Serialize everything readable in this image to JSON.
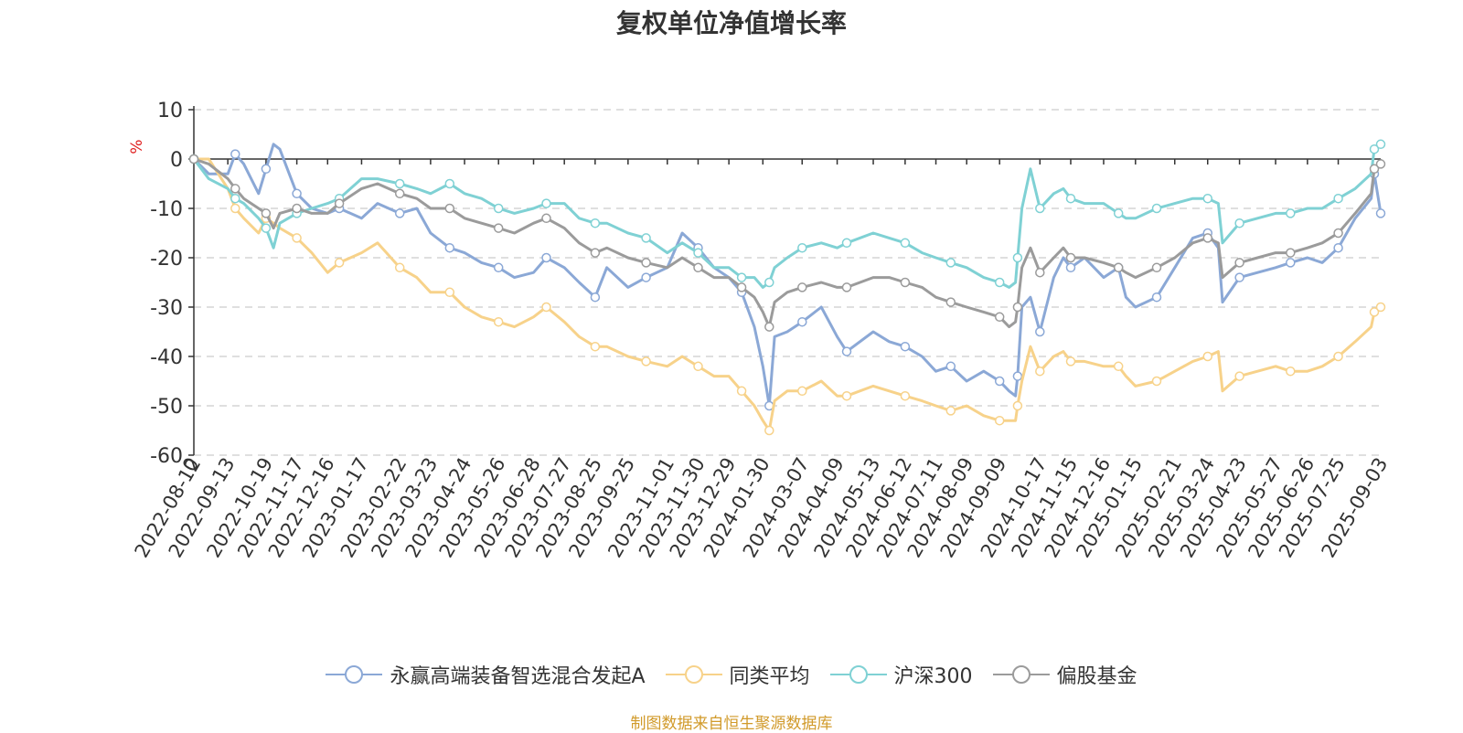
{
  "chart_data": {
    "type": "line",
    "title": "复权单位净值增长率",
    "ylabel": "%",
    "ylim": [
      -60,
      10
    ],
    "yticks": [
      10,
      0,
      -10,
      -20,
      -30,
      -40,
      -50,
      -60
    ],
    "x_start": "2022-08-12",
    "x_end": "2025-09-03",
    "first_tick_label": "0",
    "xticks": [
      "2022-08-12",
      "2022-09-13",
      "2022-10-19",
      "2022-11-17",
      "2022-12-16",
      "2023-01-17",
      "2023-02-22",
      "2023-03-23",
      "2023-04-24",
      "2023-05-26",
      "2023-06-28",
      "2023-07-27",
      "2023-08-25",
      "2023-09-25",
      "2023-11-01",
      "2023-11-30",
      "2023-12-29",
      "2024-01-30",
      "2024-03-07",
      "2024-04-09",
      "2024-05-13",
      "2024-06-12",
      "2024-07-11",
      "2024-08-09",
      "2024-09-09",
      "2024-10-17",
      "2024-11-15",
      "2024-12-16",
      "2025-01-15",
      "2025-02-21",
      "2025-03-24",
      "2025-04-23",
      "2025-05-27",
      "2025-06-26",
      "2025-07-25",
      "2025-09-03"
    ],
    "grid": true,
    "legend_position": "bottom",
    "series": [
      {
        "name": "永赢高端装备智选混合发起A",
        "color": "#8ba8d6",
        "x": [
          "2022-08-12",
          "2022-08-26",
          "2022-09-13",
          "2022-09-20",
          "2022-09-28",
          "2022-10-12",
          "2022-10-19",
          "2022-10-26",
          "2022-11-01",
          "2022-11-17",
          "2022-12-01",
          "2022-12-16",
          "2022-12-27",
          "2023-01-17",
          "2023-02-01",
          "2023-02-22",
          "2023-03-10",
          "2023-03-23",
          "2023-04-10",
          "2023-04-24",
          "2023-05-10",
          "2023-05-26",
          "2023-06-10",
          "2023-06-28",
          "2023-07-10",
          "2023-07-27",
          "2023-08-10",
          "2023-08-25",
          "2023-09-05",
          "2023-09-25",
          "2023-10-12",
          "2023-11-01",
          "2023-11-15",
          "2023-11-30",
          "2023-12-15",
          "2023-12-29",
          "2024-01-10",
          "2024-01-22",
          "2024-01-30",
          "2024-02-05",
          "2024-02-10",
          "2024-02-22",
          "2024-03-07",
          "2024-03-25",
          "2024-04-09",
          "2024-04-18",
          "2024-05-13",
          "2024-05-28",
          "2024-06-12",
          "2024-06-28",
          "2024-07-11",
          "2024-07-25",
          "2024-08-09",
          "2024-08-25",
          "2024-09-09",
          "2024-09-18",
          "2024-09-24",
          "2024-09-26",
          "2024-09-30",
          "2024-10-08",
          "2024-10-17",
          "2024-10-30",
          "2024-11-08",
          "2024-11-15",
          "2024-11-28",
          "2024-12-16",
          "2024-12-30",
          "2025-01-06",
          "2025-01-15",
          "2025-02-04",
          "2025-02-21",
          "2025-03-10",
          "2025-03-24",
          "2025-04-03",
          "2025-04-07",
          "2025-04-23",
          "2025-05-10",
          "2025-05-27",
          "2025-06-10",
          "2025-06-26",
          "2025-07-10",
          "2025-07-25",
          "2025-08-10",
          "2025-08-25",
          "2025-08-28",
          "2025-09-03"
        ],
        "y": [
          0,
          -3,
          -3,
          1,
          -1,
          -7,
          -2,
          3,
          2,
          -7,
          -10,
          -11,
          -10,
          -12,
          -9,
          -11,
          -10,
          -15,
          -18,
          -19,
          -21,
          -22,
          -24,
          -23,
          -20,
          -22,
          -25,
          -28,
          -22,
          -26,
          -24,
          -22,
          -15,
          -18,
          -22,
          -24,
          -27,
          -34,
          -42,
          -50,
          -36,
          -35,
          -33,
          -30,
          -36,
          -39,
          -35,
          -37,
          -38,
          -40,
          -43,
          -42,
          -45,
          -43,
          -45,
          -47,
          -48,
          -44,
          -30,
          -28,
          -35,
          -24,
          -20,
          -22,
          -20,
          -24,
          -22,
          -28,
          -30,
          -28,
          -22,
          -16,
          -15,
          -18,
          -29,
          -24,
          -23,
          -22,
          -21,
          -20,
          -21,
          -18,
          -12,
          -8,
          -3,
          -11
        ]
      },
      {
        "name": "同类平均",
        "color": "#f7d28a",
        "x": [
          "2022-08-12",
          "2022-08-26",
          "2022-09-13",
          "2022-09-20",
          "2022-09-28",
          "2022-10-12",
          "2022-10-19",
          "2022-10-26",
          "2022-11-01",
          "2022-11-17",
          "2022-12-01",
          "2022-12-16",
          "2022-12-27",
          "2023-01-17",
          "2023-02-01",
          "2023-02-22",
          "2023-03-10",
          "2023-03-23",
          "2023-04-10",
          "2023-04-24",
          "2023-05-10",
          "2023-05-26",
          "2023-06-10",
          "2023-06-28",
          "2023-07-10",
          "2023-07-27",
          "2023-08-10",
          "2023-08-25",
          "2023-09-05",
          "2023-09-25",
          "2023-10-12",
          "2023-11-01",
          "2023-11-15",
          "2023-11-30",
          "2023-12-15",
          "2023-12-29",
          "2024-01-10",
          "2024-01-22",
          "2024-01-30",
          "2024-02-05",
          "2024-02-10",
          "2024-02-22",
          "2024-03-07",
          "2024-03-25",
          "2024-04-09",
          "2024-04-18",
          "2024-05-13",
          "2024-05-28",
          "2024-06-12",
          "2024-06-28",
          "2024-07-11",
          "2024-07-25",
          "2024-08-09",
          "2024-08-25",
          "2024-09-09",
          "2024-09-18",
          "2024-09-24",
          "2024-09-26",
          "2024-09-30",
          "2024-10-08",
          "2024-10-17",
          "2024-10-30",
          "2024-11-08",
          "2024-11-15",
          "2024-11-28",
          "2024-12-16",
          "2024-12-30",
          "2025-01-06",
          "2025-01-15",
          "2025-02-04",
          "2025-02-21",
          "2025-03-10",
          "2025-03-24",
          "2025-04-03",
          "2025-04-07",
          "2025-04-23",
          "2025-05-10",
          "2025-05-27",
          "2025-06-10",
          "2025-06-26",
          "2025-07-10",
          "2025-07-25",
          "2025-08-10",
          "2025-08-25",
          "2025-08-28",
          "2025-09-03"
        ],
        "y": [
          0,
          0,
          -6,
          -10,
          -12,
          -15,
          -12,
          -13,
          -14,
          -16,
          -19,
          -23,
          -21,
          -19,
          -17,
          -22,
          -24,
          -27,
          -27,
          -30,
          -32,
          -33,
          -34,
          -32,
          -30,
          -33,
          -36,
          -38,
          -38,
          -40,
          -41,
          -42,
          -40,
          -42,
          -44,
          -44,
          -47,
          -50,
          -53,
          -55,
          -49,
          -47,
          -47,
          -45,
          -48,
          -48,
          -46,
          -47,
          -48,
          -49,
          -50,
          -51,
          -50,
          -52,
          -53,
          -53,
          -53,
          -50,
          -45,
          -38,
          -43,
          -40,
          -39,
          -41,
          -41,
          -42,
          -42,
          -44,
          -46,
          -45,
          -43,
          -41,
          -40,
          -39,
          -47,
          -44,
          -43,
          -42,
          -43,
          -43,
          -42,
          -40,
          -37,
          -34,
          -31,
          -30
        ]
      },
      {
        "name": "沪深300",
        "color": "#7fd1d4",
        "x": [
          "2022-08-12",
          "2022-08-26",
          "2022-09-13",
          "2022-09-20",
          "2022-09-28",
          "2022-10-12",
          "2022-10-19",
          "2022-10-26",
          "2022-11-01",
          "2022-11-17",
          "2022-12-01",
          "2022-12-16",
          "2022-12-27",
          "2023-01-17",
          "2023-02-01",
          "2023-02-22",
          "2023-03-10",
          "2023-03-23",
          "2023-04-10",
          "2023-04-24",
          "2023-05-10",
          "2023-05-26",
          "2023-06-10",
          "2023-06-28",
          "2023-07-10",
          "2023-07-27",
          "2023-08-10",
          "2023-08-25",
          "2023-09-05",
          "2023-09-25",
          "2023-10-12",
          "2023-11-01",
          "2023-11-15",
          "2023-11-30",
          "2023-12-15",
          "2023-12-29",
          "2024-01-10",
          "2024-01-22",
          "2024-01-30",
          "2024-02-05",
          "2024-02-10",
          "2024-02-22",
          "2024-03-07",
          "2024-03-25",
          "2024-04-09",
          "2024-04-18",
          "2024-05-13",
          "2024-05-28",
          "2024-06-12",
          "2024-06-28",
          "2024-07-11",
          "2024-07-25",
          "2024-08-09",
          "2024-08-25",
          "2024-09-09",
          "2024-09-18",
          "2024-09-24",
          "2024-09-26",
          "2024-09-30",
          "2024-10-08",
          "2024-10-17",
          "2024-10-30",
          "2024-11-08",
          "2024-11-15",
          "2024-11-28",
          "2024-12-16",
          "2024-12-30",
          "2025-01-06",
          "2025-01-15",
          "2025-02-04",
          "2025-02-21",
          "2025-03-10",
          "2025-03-24",
          "2025-04-03",
          "2025-04-07",
          "2025-04-23",
          "2025-05-10",
          "2025-05-27",
          "2025-06-10",
          "2025-06-26",
          "2025-07-10",
          "2025-07-25",
          "2025-08-10",
          "2025-08-25",
          "2025-08-28",
          "2025-09-03"
        ],
        "y": [
          0,
          -4,
          -6,
          -8,
          -9,
          -12,
          -14,
          -18,
          -13,
          -11,
          -10,
          -9,
          -8,
          -4,
          -4,
          -5,
          -6,
          -7,
          -5,
          -7,
          -8,
          -10,
          -11,
          -10,
          -9,
          -9,
          -12,
          -13,
          -13,
          -15,
          -16,
          -19,
          -17,
          -19,
          -22,
          -22,
          -24,
          -24,
          -26,
          -25,
          -22,
          -20,
          -18,
          -17,
          -18,
          -17,
          -15,
          -16,
          -17,
          -19,
          -20,
          -21,
          -22,
          -24,
          -25,
          -26,
          -25,
          -20,
          -10,
          -2,
          -10,
          -7,
          -6,
          -8,
          -9,
          -9,
          -11,
          -12,
          -12,
          -10,
          -9,
          -8,
          -8,
          -9,
          -17,
          -13,
          -12,
          -11,
          -11,
          -10,
          -10,
          -8,
          -6,
          -3,
          2,
          3
        ]
      },
      {
        "name": "偏股基金",
        "color": "#9b9b9b",
        "x": [
          "2022-08-12",
          "2022-08-26",
          "2022-09-13",
          "2022-09-20",
          "2022-09-28",
          "2022-10-12",
          "2022-10-19",
          "2022-10-26",
          "2022-11-01",
          "2022-11-17",
          "2022-12-01",
          "2022-12-16",
          "2022-12-27",
          "2023-01-17",
          "2023-02-01",
          "2023-02-22",
          "2023-03-10",
          "2023-03-23",
          "2023-04-10",
          "2023-04-24",
          "2023-05-10",
          "2023-05-26",
          "2023-06-10",
          "2023-06-28",
          "2023-07-10",
          "2023-07-27",
          "2023-08-10",
          "2023-08-25",
          "2023-09-05",
          "2023-09-25",
          "2023-10-12",
          "2023-11-01",
          "2023-11-15",
          "2023-11-30",
          "2023-12-15",
          "2023-12-29",
          "2024-01-10",
          "2024-01-22",
          "2024-01-30",
          "2024-02-05",
          "2024-02-10",
          "2024-02-22",
          "2024-03-07",
          "2024-03-25",
          "2024-04-09",
          "2024-04-18",
          "2024-05-13",
          "2024-05-28",
          "2024-06-12",
          "2024-06-28",
          "2024-07-11",
          "2024-07-25",
          "2024-08-09",
          "2024-08-25",
          "2024-09-09",
          "2024-09-18",
          "2024-09-24",
          "2024-09-26",
          "2024-09-30",
          "2024-10-08",
          "2024-10-17",
          "2024-10-30",
          "2024-11-08",
          "2024-11-15",
          "2024-11-28",
          "2024-12-16",
          "2024-12-30",
          "2025-01-06",
          "2025-01-15",
          "2025-02-04",
          "2025-02-21",
          "2025-03-10",
          "2025-03-24",
          "2025-04-03",
          "2025-04-07",
          "2025-04-23",
          "2025-05-10",
          "2025-05-27",
          "2025-06-10",
          "2025-06-26",
          "2025-07-10",
          "2025-07-25",
          "2025-08-10",
          "2025-08-25",
          "2025-08-28",
          "2025-09-03"
        ],
        "y": [
          0,
          -1,
          -4,
          -6,
          -8,
          -10,
          -11,
          -14,
          -11,
          -10,
          -11,
          -11,
          -9,
          -6,
          -5,
          -7,
          -8,
          -10,
          -10,
          -12,
          -13,
          -14,
          -15,
          -13,
          -12,
          -14,
          -17,
          -19,
          -18,
          -20,
          -21,
          -22,
          -20,
          -22,
          -24,
          -24,
          -26,
          -28,
          -31,
          -34,
          -29,
          -27,
          -26,
          -25,
          -26,
          -26,
          -24,
          -24,
          -25,
          -26,
          -28,
          -29,
          -30,
          -31,
          -32,
          -34,
          -33,
          -30,
          -22,
          -18,
          -23,
          -20,
          -18,
          -20,
          -20,
          -21,
          -22,
          -23,
          -24,
          -22,
          -20,
          -17,
          -16,
          -17,
          -24,
          -21,
          -20,
          -19,
          -19,
          -18,
          -17,
          -15,
          -11,
          -7,
          -2,
          -1
        ]
      }
    ]
  },
  "legend": {
    "items": [
      {
        "label": "永赢高端装备智选混合发起A",
        "color": "#8ba8d6"
      },
      {
        "label": "同类平均",
        "color": "#f7d28a"
      },
      {
        "label": "沪深300",
        "color": "#7fd1d4"
      },
      {
        "label": "偏股基金",
        "color": "#9b9b9b"
      }
    ]
  },
  "source_note": "制图数据来自恒生聚源数据库"
}
